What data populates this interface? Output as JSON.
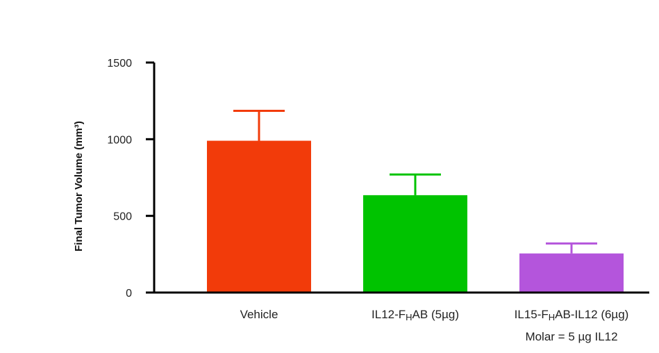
{
  "chart_data": {
    "type": "bar",
    "ylabel": "Final Tumor Volume (mm³)",
    "ylim": [
      0,
      1500
    ],
    "yticks": [
      0,
      500,
      1000,
      1500
    ],
    "ytick_labels": [
      "0",
      "500",
      "1000",
      "1500"
    ],
    "grid": false,
    "categories": [
      {
        "label": "Vehicle",
        "sub": "",
        "line2": ""
      },
      {
        "label": "IL12-F",
        "sub": "H",
        "line2": "",
        "after": "AB (5µg)"
      },
      {
        "label": "IL15-F",
        "sub": "H",
        "after": "AB-IL12 (6µg)",
        "line2": "Molar = 5 µg IL12"
      }
    ],
    "values": [
      990,
      635,
      255
    ],
    "errors": [
      195,
      135,
      65
    ],
    "colors": [
      "#f23b0a",
      "#00c300",
      "#b455dc"
    ]
  }
}
